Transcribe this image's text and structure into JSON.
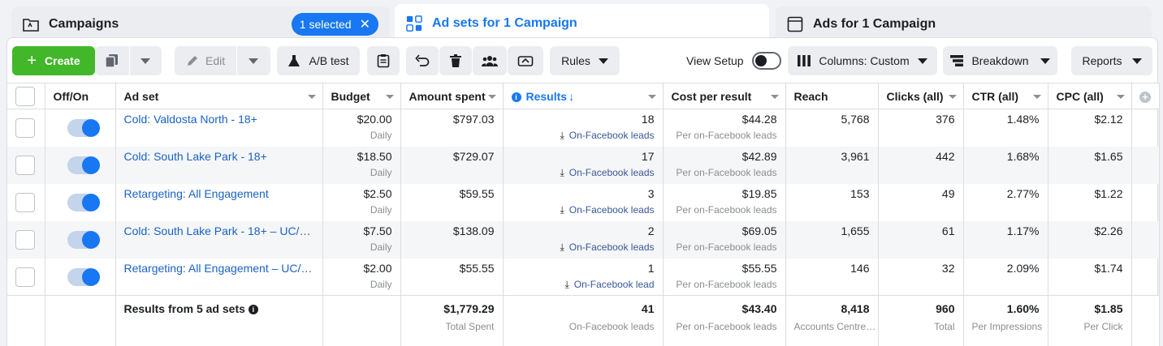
{
  "tabs": [
    {
      "label": "Campaigns",
      "icon": "folder-icon",
      "badge": "1 selected"
    },
    {
      "label": "Ad sets for 1 Campaign",
      "icon": "grid-icon"
    },
    {
      "label": "Ads for 1 Campaign",
      "icon": "ad-icon"
    }
  ],
  "toolbar": {
    "create": "Create",
    "edit": "Edit",
    "ab_test": "A/B test",
    "rules": "Rules",
    "view_setup": "View Setup",
    "columns": "Columns: Custom",
    "breakdown": "Breakdown",
    "reports": "Reports"
  },
  "columns": [
    "Off/On",
    "Ad set",
    "Budget",
    "Amount spent",
    "Results",
    "Cost per result",
    "Reach",
    "Clicks (all)",
    "CTR (all)",
    "CPC (all)"
  ],
  "results_sort_arrow": "↓",
  "rows": [
    {
      "name": "Cold: Valdosta North - 18+",
      "budget": "$20.00",
      "budget_type": "Daily",
      "spent": "$797.03",
      "results": "18",
      "results_type": "On-Facebook leads",
      "cpr": "$44.28",
      "cpr_type": "Per on-Facebook leads",
      "reach": "5,768",
      "clicks": "376",
      "ctr": "1.48%",
      "cpc": "$2.12"
    },
    {
      "name": "Cold: South Lake Park - 18+",
      "budget": "$18.50",
      "budget_type": "Daily",
      "spent": "$729.07",
      "results": "17",
      "results_type": "On-Facebook leads",
      "cpr": "$42.89",
      "cpr_type": "Per on-Facebook leads",
      "reach": "3,961",
      "clicks": "442",
      "ctr": "1.68%",
      "cpc": "$1.65"
    },
    {
      "name": "Retargeting: All Engagement",
      "budget": "$2.50",
      "budget_type": "Daily",
      "spent": "$59.55",
      "results": "3",
      "results_type": "On-Facebook leads",
      "cpr": "$19.85",
      "cpr_type": "Per on-Facebook leads",
      "reach": "153",
      "clicks": "49",
      "ctr": "2.77%",
      "cpc": "$1.22"
    },
    {
      "name": "Cold: South Lake Park - 18+ – UC/…",
      "budget": "$7.50",
      "budget_type": "Daily",
      "spent": "$138.09",
      "results": "2",
      "results_type": "On-Facebook leads",
      "cpr": "$69.05",
      "cpr_type": "Per on-Facebook leads",
      "reach": "1,655",
      "clicks": "61",
      "ctr": "1.17%",
      "cpc": "$2.26"
    },
    {
      "name": "Retargeting: All Engagement – UC/…",
      "budget": "$2.00",
      "budget_type": "Daily",
      "spent": "$55.55",
      "results": "1",
      "results_type": "On-Facebook lead",
      "cpr": "$55.55",
      "cpr_type": "Per on-Facebook leads",
      "reach": "146",
      "clicks": "32",
      "ctr": "2.09%",
      "cpc": "$1.74"
    }
  ],
  "summary": {
    "label": "Results from 5 ad sets",
    "spent": "$1,779.29",
    "spent_sub": "Total Spent",
    "results": "41",
    "results_sub": "On-Facebook leads",
    "cpr": "$43.40",
    "cpr_sub": "Per on-Facebook leads",
    "reach": "8,418",
    "reach_sub": "Accounts Centre…",
    "clicks": "960",
    "clicks_sub": "Total",
    "ctr": "1.60%",
    "ctr_sub": "Per Impressions",
    "cpc": "$1.85",
    "cpc_sub": "Per Click"
  },
  "colors": {
    "accent": "#1877f2",
    "create": "#42b72a",
    "link": "#1a62c5"
  }
}
